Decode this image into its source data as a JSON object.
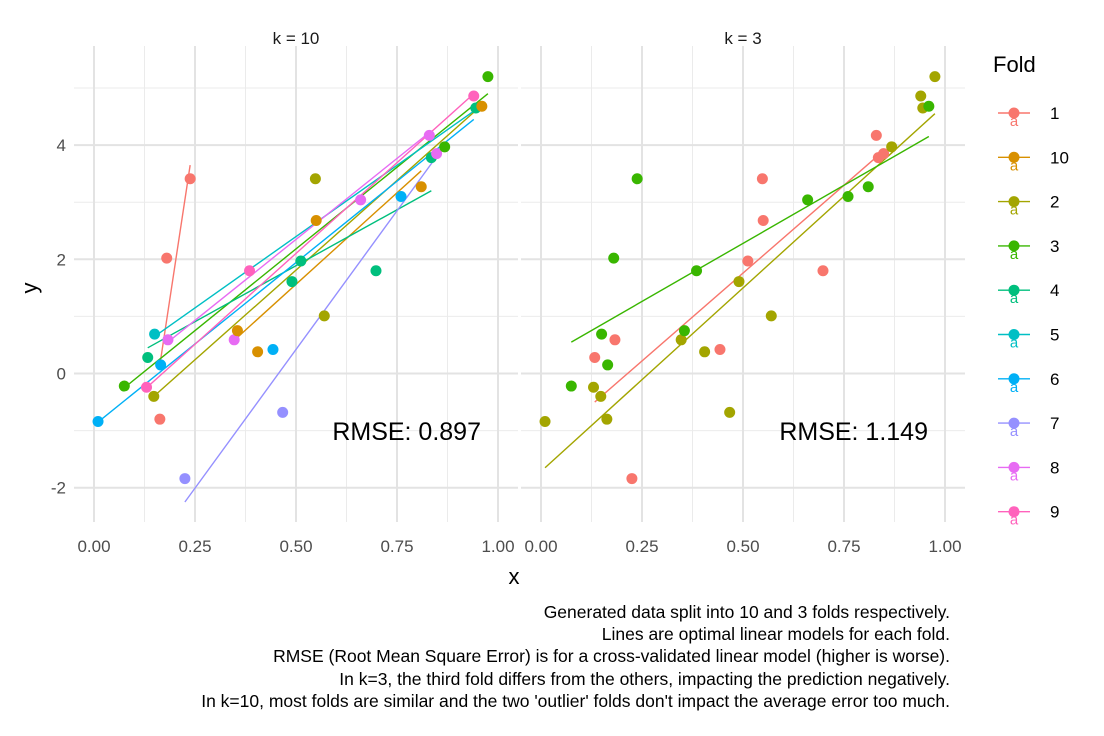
{
  "chart_data": {
    "type": "scatter",
    "xlabel": "x",
    "ylabel": "y",
    "xlim": [
      0,
      1
    ],
    "ylim": [
      -2.5,
      5.5
    ],
    "x_ticks": [
      "0.00",
      "0.25",
      "0.50",
      "0.75",
      "1.00"
    ],
    "y_ticks": [
      "-2",
      "0",
      "2",
      "4"
    ],
    "legend": {
      "title": "Fold",
      "position": "right",
      "glyph": "a",
      "entries": [
        {
          "label": "1",
          "color": "#F8766D"
        },
        {
          "label": "10",
          "color": "#D89000"
        },
        {
          "label": "2",
          "color": "#A3A500"
        },
        {
          "label": "3",
          "color": "#39B600"
        },
        {
          "label": "4",
          "color": "#00BF7D"
        },
        {
          "label": "5",
          "color": "#00BFC4"
        },
        {
          "label": "6",
          "color": "#00B0F6"
        },
        {
          "label": "7",
          "color": "#9590FF"
        },
        {
          "label": "8",
          "color": "#E76BF3"
        },
        {
          "label": "9",
          "color": "#FF62BC"
        }
      ]
    },
    "panels": [
      {
        "title": "k = 10",
        "rmse": "RMSE: 0.897",
        "points": [
          {
            "x": 0.01,
            "y": -0.84,
            "fold": "6"
          },
          {
            "x": 0.075,
            "y": -0.22,
            "fold": "3"
          },
          {
            "x": 0.13,
            "y": -0.24,
            "fold": "9"
          },
          {
            "x": 0.133,
            "y": 0.28,
            "fold": "4"
          },
          {
            "x": 0.148,
            "y": -0.4,
            "fold": "2"
          },
          {
            "x": 0.15,
            "y": 0.69,
            "fold": "5"
          },
          {
            "x": 0.163,
            "y": -0.8,
            "fold": "1"
          },
          {
            "x": 0.165,
            "y": 0.15,
            "fold": "6"
          },
          {
            "x": 0.18,
            "y": 2.02,
            "fold": "1"
          },
          {
            "x": 0.183,
            "y": 0.59,
            "fold": "8"
          },
          {
            "x": 0.225,
            "y": -1.84,
            "fold": "7"
          },
          {
            "x": 0.238,
            "y": 3.41,
            "fold": "1"
          },
          {
            "x": 0.347,
            "y": 0.59,
            "fold": "8"
          },
          {
            "x": 0.355,
            "y": 0.75,
            "fold": "10"
          },
          {
            "x": 0.385,
            "y": 1.8,
            "fold": "9"
          },
          {
            "x": 0.405,
            "y": 0.38,
            "fold": "10"
          },
          {
            "x": 0.443,
            "y": 0.42,
            "fold": "6"
          },
          {
            "x": 0.467,
            "y": -0.68,
            "fold": "7"
          },
          {
            "x": 0.49,
            "y": 1.61,
            "fold": "4"
          },
          {
            "x": 0.512,
            "y": 1.97,
            "fold": "4"
          },
          {
            "x": 0.548,
            "y": 3.41,
            "fold": "2"
          },
          {
            "x": 0.55,
            "y": 2.68,
            "fold": "10"
          },
          {
            "x": 0.57,
            "y": 1.01,
            "fold": "2"
          },
          {
            "x": 0.66,
            "y": 3.04,
            "fold": "8"
          },
          {
            "x": 0.698,
            "y": 1.8,
            "fold": "4"
          },
          {
            "x": 0.76,
            "y": 3.1,
            "fold": "6"
          },
          {
            "x": 0.81,
            "y": 3.27,
            "fold": "10"
          },
          {
            "x": 0.83,
            "y": 4.17,
            "fold": "8"
          },
          {
            "x": 0.835,
            "y": 3.78,
            "fold": "4"
          },
          {
            "x": 0.848,
            "y": 3.85,
            "fold": "8"
          },
          {
            "x": 0.868,
            "y": 3.97,
            "fold": "3"
          },
          {
            "x": 0.94,
            "y": 4.86,
            "fold": "9"
          },
          {
            "x": 0.945,
            "y": 4.65,
            "fold": "4"
          },
          {
            "x": 0.96,
            "y": 4.68,
            "fold": "10"
          },
          {
            "x": 0.975,
            "y": 5.2,
            "fold": "3"
          }
        ],
        "lines": [
          {
            "fold": "1",
            "x": [
              0.163,
              0.238
            ],
            "y": [
              0.15,
              3.65
            ]
          },
          {
            "fold": "10",
            "x": [
              0.35,
              0.81
            ],
            "y": [
              0.6,
              3.55
            ]
          },
          {
            "fold": "2",
            "x": [
              0.148,
              0.96
            ],
            "y": [
              -0.4,
              4.7
            ]
          },
          {
            "fold": "3",
            "x": [
              0.075,
              0.975
            ],
            "y": [
              -0.25,
              4.9
            ]
          },
          {
            "fold": "4",
            "x": [
              0.133,
              0.835
            ],
            "y": [
              0.45,
              3.2
            ]
          },
          {
            "fold": "5",
            "x": [
              0.15,
              0.945
            ],
            "y": [
              0.65,
              4.62
            ]
          },
          {
            "fold": "6",
            "x": [
              0.01,
              0.94
            ],
            "y": [
              -0.85,
              4.45
            ]
          },
          {
            "fold": "7",
            "x": [
              0.225,
              0.848
            ],
            "y": [
              -2.25,
              3.8
            ]
          },
          {
            "fold": "8",
            "x": [
              0.183,
              0.83
            ],
            "y": [
              0.55,
              4.22
            ]
          },
          {
            "fold": "9",
            "x": [
              0.13,
              0.94
            ],
            "y": [
              -0.25,
              4.9
            ]
          }
        ]
      },
      {
        "title": "k = 3",
        "rmse": "RMSE: 1.149",
        "points": [
          {
            "x": 0.01,
            "y": -0.84,
            "fold": "2"
          },
          {
            "x": 0.075,
            "y": -0.22,
            "fold": "3"
          },
          {
            "x": 0.133,
            "y": 0.28,
            "fold": "1"
          },
          {
            "x": 0.13,
            "y": -0.24,
            "fold": "2"
          },
          {
            "x": 0.148,
            "y": -0.4,
            "fold": "2"
          },
          {
            "x": 0.15,
            "y": 0.69,
            "fold": "3"
          },
          {
            "x": 0.163,
            "y": -0.8,
            "fold": "2"
          },
          {
            "x": 0.165,
            "y": 0.15,
            "fold": "3"
          },
          {
            "x": 0.18,
            "y": 2.02,
            "fold": "3"
          },
          {
            "x": 0.183,
            "y": 0.59,
            "fold": "1"
          },
          {
            "x": 0.225,
            "y": -1.84,
            "fold": "1"
          },
          {
            "x": 0.238,
            "y": 3.41,
            "fold": "3"
          },
          {
            "x": 0.347,
            "y": 0.59,
            "fold": "2"
          },
          {
            "x": 0.355,
            "y": 0.75,
            "fold": "3"
          },
          {
            "x": 0.385,
            "y": 1.8,
            "fold": "3"
          },
          {
            "x": 0.405,
            "y": 0.38,
            "fold": "2"
          },
          {
            "x": 0.443,
            "y": 0.42,
            "fold": "1"
          },
          {
            "x": 0.467,
            "y": -0.68,
            "fold": "2"
          },
          {
            "x": 0.49,
            "y": 1.61,
            "fold": "2"
          },
          {
            "x": 0.512,
            "y": 1.97,
            "fold": "1"
          },
          {
            "x": 0.548,
            "y": 3.41,
            "fold": "1"
          },
          {
            "x": 0.55,
            "y": 2.68,
            "fold": "1"
          },
          {
            "x": 0.57,
            "y": 1.01,
            "fold": "2"
          },
          {
            "x": 0.66,
            "y": 3.04,
            "fold": "3"
          },
          {
            "x": 0.698,
            "y": 1.8,
            "fold": "1"
          },
          {
            "x": 0.76,
            "y": 3.1,
            "fold": "3"
          },
          {
            "x": 0.81,
            "y": 3.27,
            "fold": "3"
          },
          {
            "x": 0.83,
            "y": 4.17,
            "fold": "1"
          },
          {
            "x": 0.835,
            "y": 3.78,
            "fold": "1"
          },
          {
            "x": 0.848,
            "y": 3.85,
            "fold": "1"
          },
          {
            "x": 0.868,
            "y": 3.97,
            "fold": "2"
          },
          {
            "x": 0.94,
            "y": 4.86,
            "fold": "2"
          },
          {
            "x": 0.945,
            "y": 4.65,
            "fold": "2"
          },
          {
            "x": 0.96,
            "y": 4.68,
            "fold": "3"
          },
          {
            "x": 0.975,
            "y": 5.2,
            "fold": "2"
          }
        ],
        "lines": [
          {
            "fold": "1",
            "x": [
              0.133,
              0.848
            ],
            "y": [
              -0.5,
              3.9
            ]
          },
          {
            "fold": "2",
            "x": [
              0.01,
              0.975
            ],
            "y": [
              -1.65,
              4.55
            ]
          },
          {
            "fold": "3",
            "x": [
              0.075,
              0.96
            ],
            "y": [
              0.55,
              4.15
            ]
          }
        ]
      }
    ],
    "caption": [
      "Generated data split into 10 and 3 folds respectively.",
      "Lines are optimal linear models for each fold.",
      "RMSE (Root Mean Square Error) is for a cross-validated linear model (higher is worse).",
      "In k=3, the third fold differs from the others, impacting the prediction negatively.",
      "In k=10, most folds are similar and the two 'outlier' folds don't impact the average error too much."
    ]
  }
}
